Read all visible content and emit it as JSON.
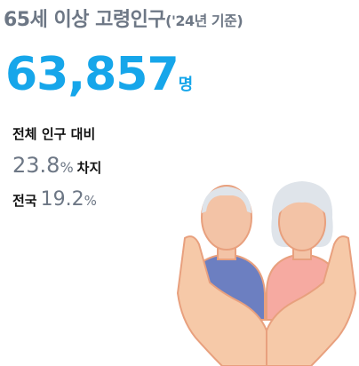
{
  "header": {
    "title": "65세 이상 고령인구",
    "subtitle": "('24년 기준)"
  },
  "headline": {
    "number": "63,857",
    "unit": "명"
  },
  "share": {
    "label": "전체 인구 대비",
    "value": "23.8",
    "unit": "%",
    "suffix": "차지"
  },
  "national": {
    "label": "전국",
    "value": "19.2",
    "unit": "%"
  }
}
